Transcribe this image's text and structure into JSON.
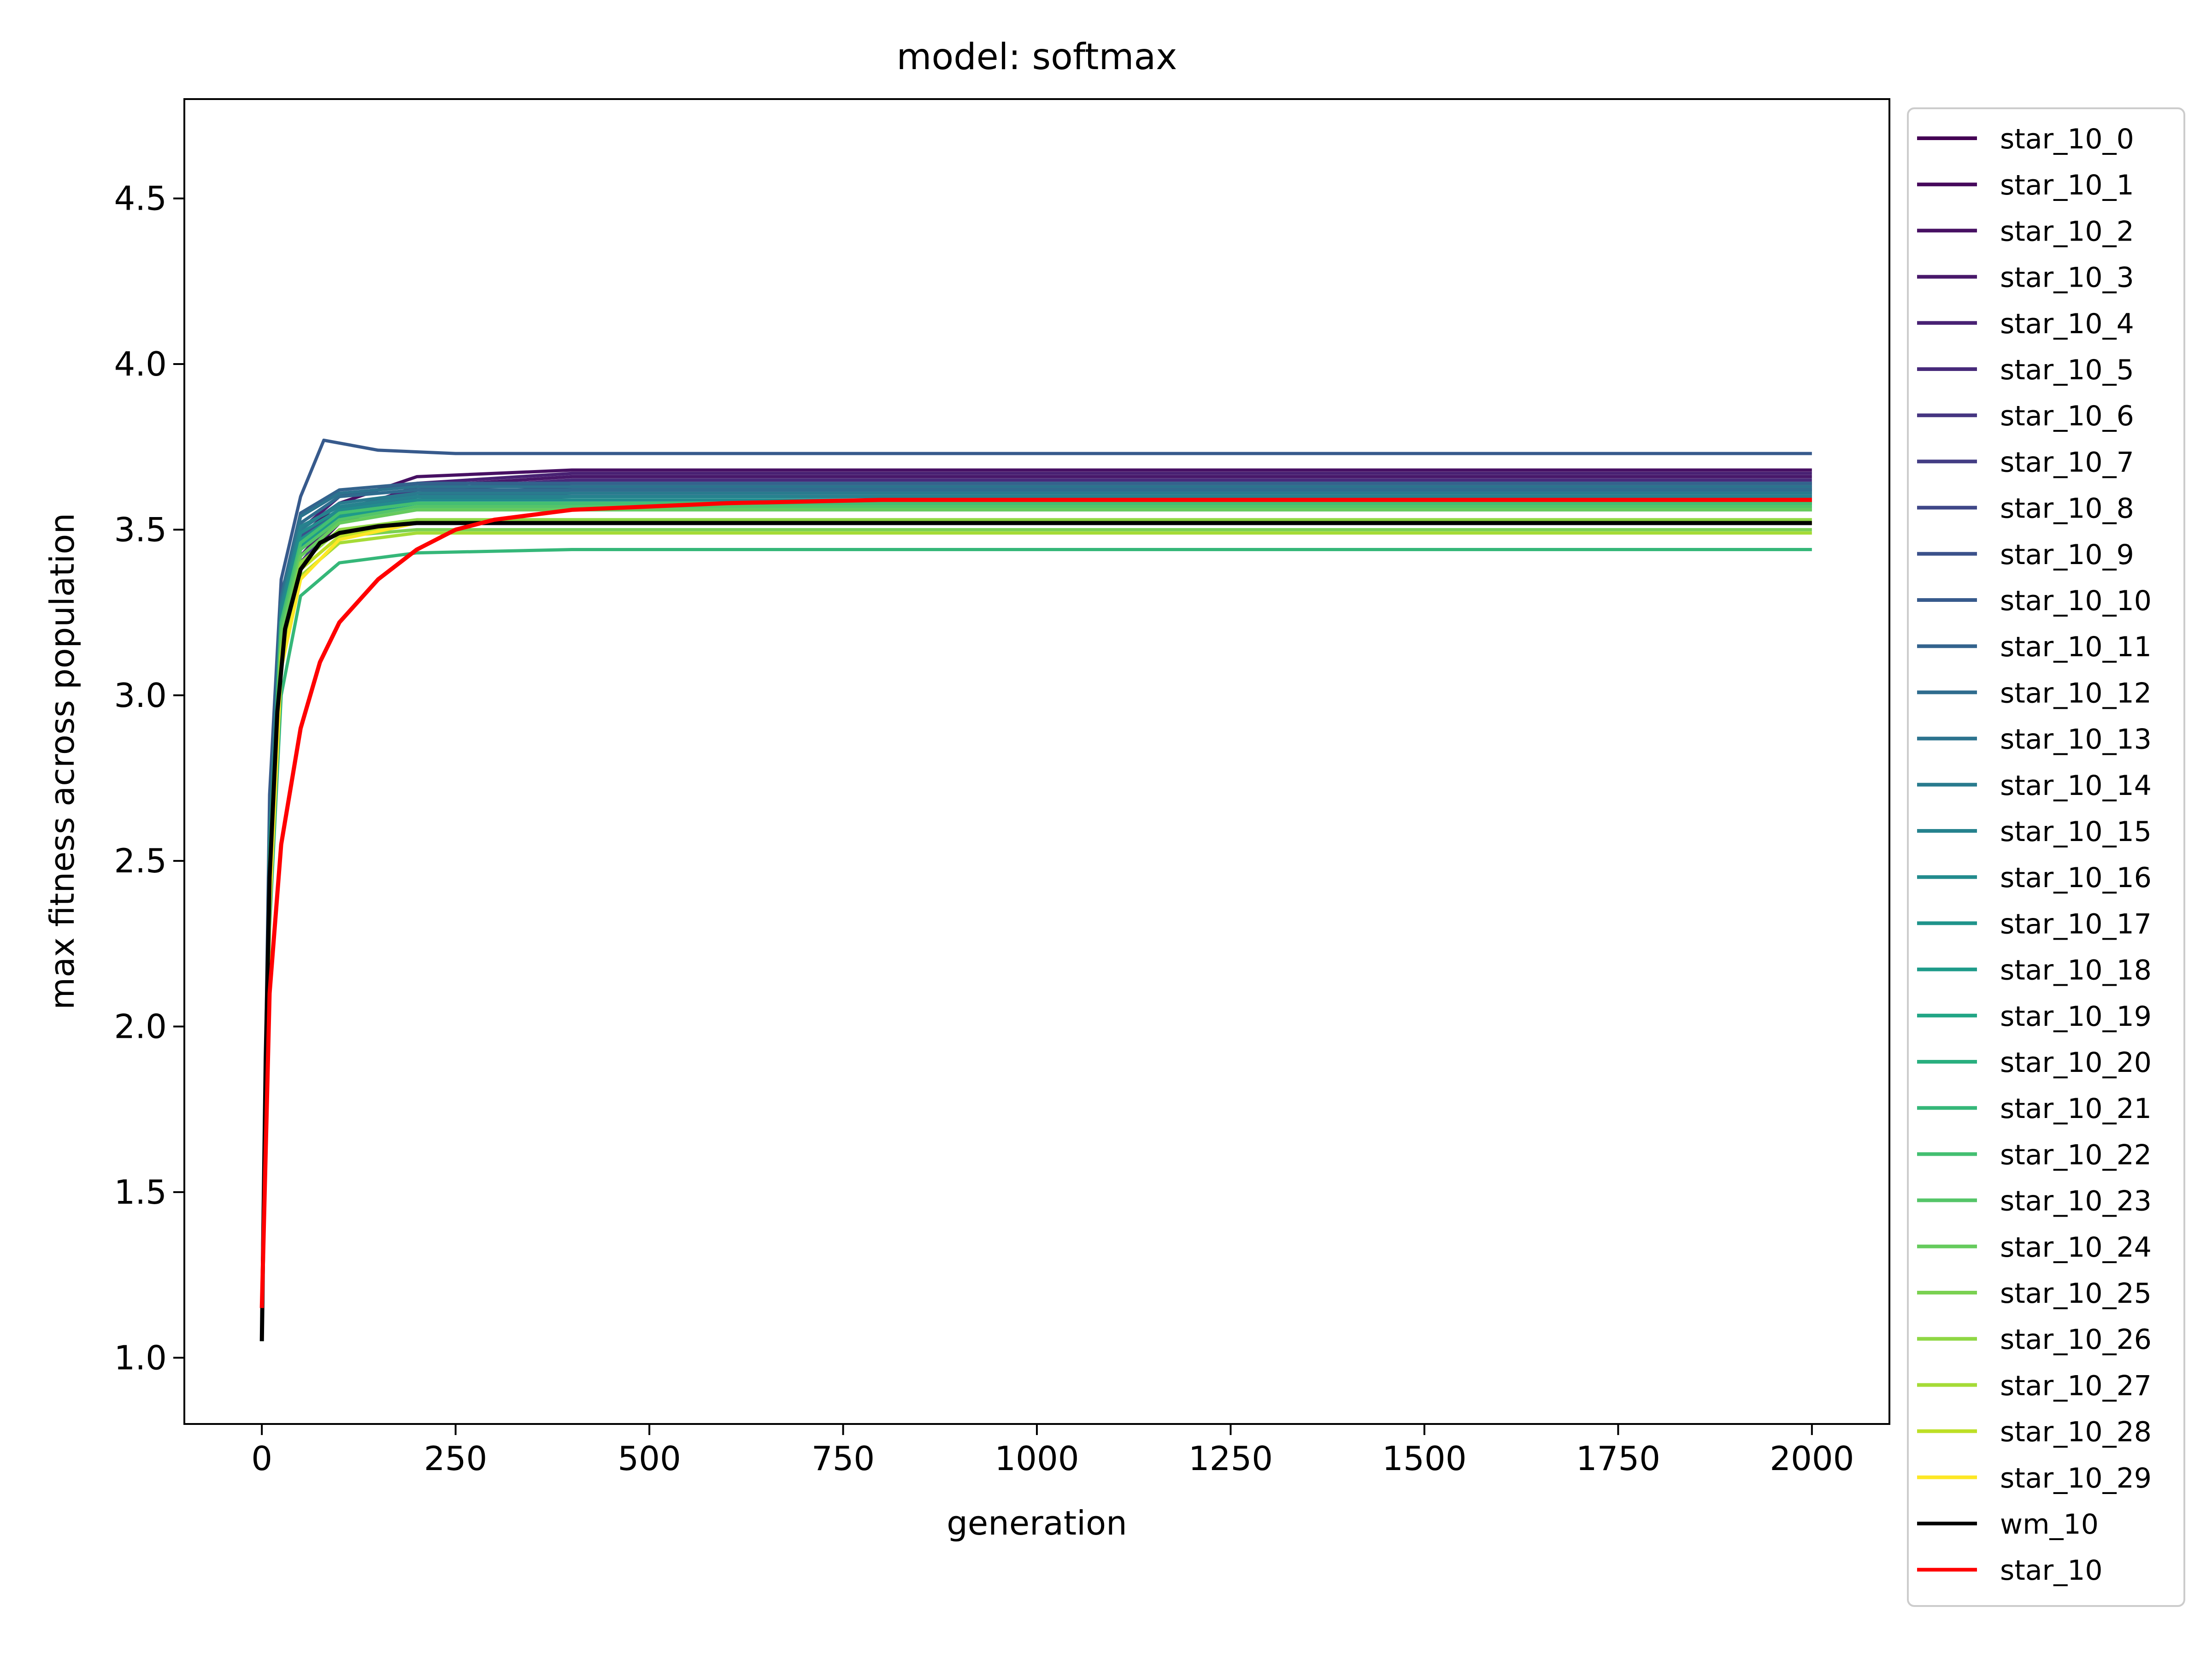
{
  "chart_data": {
    "type": "line",
    "title": "model: softmax",
    "xlabel": "generation",
    "ylabel": "max fitness across population",
    "xlim": [
      -100,
      2100
    ],
    "ylim": [
      0.8,
      4.8
    ],
    "x_ticks": [
      0,
      250,
      500,
      750,
      1000,
      1250,
      1500,
      1750,
      2000
    ],
    "x_tick_labels": [
      "0",
      "250",
      "500",
      "750",
      "1000",
      "1250",
      "1500",
      "1750",
      "2000"
    ],
    "y_ticks": [
      1.0,
      1.5,
      2.0,
      2.5,
      3.0,
      3.5,
      4.0,
      4.5
    ],
    "y_tick_labels": [
      "1.0",
      "1.5",
      "2.0",
      "2.5",
      "3.0",
      "3.5",
      "4.0",
      "4.5"
    ],
    "grid": false,
    "legend_position": "outside-right",
    "series": [
      {
        "name": "star_10_0",
        "color": "#440154",
        "values": [
          [
            0,
            1.1
          ],
          [
            10,
            2.5
          ],
          [
            25,
            3.2
          ],
          [
            50,
            3.45
          ],
          [
            100,
            3.55
          ],
          [
            200,
            3.62
          ],
          [
            400,
            3.64
          ],
          [
            2000,
            3.64
          ]
        ]
      },
      {
        "name": "star_10_1",
        "color": "#46085c",
        "values": [
          [
            0,
            1.05
          ],
          [
            10,
            2.4
          ],
          [
            25,
            3.15
          ],
          [
            50,
            3.4
          ],
          [
            100,
            3.52
          ],
          [
            200,
            3.6
          ],
          [
            400,
            3.63
          ],
          [
            2000,
            3.63
          ]
        ]
      },
      {
        "name": "star_10_2",
        "color": "#471063",
        "values": [
          [
            0,
            1.12
          ],
          [
            10,
            2.55
          ],
          [
            25,
            3.25
          ],
          [
            50,
            3.48
          ],
          [
            100,
            3.58
          ],
          [
            200,
            3.66
          ],
          [
            400,
            3.68
          ],
          [
            2000,
            3.68
          ]
        ]
      },
      {
        "name": "star_10_3",
        "color": "#48186a",
        "values": [
          [
            0,
            1.08
          ],
          [
            10,
            2.45
          ],
          [
            25,
            3.18
          ],
          [
            50,
            3.42
          ],
          [
            100,
            3.55
          ],
          [
            200,
            3.63
          ],
          [
            400,
            3.66
          ],
          [
            2000,
            3.66
          ]
        ]
      },
      {
        "name": "star_10_4",
        "color": "#482173",
        "values": [
          [
            0,
            1.15
          ],
          [
            10,
            2.6
          ],
          [
            25,
            3.28
          ],
          [
            50,
            3.5
          ],
          [
            100,
            3.6
          ],
          [
            200,
            3.64
          ],
          [
            400,
            3.67
          ],
          [
            2000,
            3.67
          ]
        ]
      },
      {
        "name": "star_10_5",
        "color": "#472a7a",
        "values": [
          [
            0,
            1.1
          ],
          [
            10,
            2.5
          ],
          [
            25,
            3.2
          ],
          [
            50,
            3.45
          ],
          [
            100,
            3.56
          ],
          [
            200,
            3.62
          ],
          [
            400,
            3.65
          ],
          [
            2000,
            3.65
          ]
        ]
      },
      {
        "name": "star_10_6",
        "color": "#453581",
        "values": [
          [
            0,
            1.05
          ],
          [
            10,
            2.42
          ],
          [
            25,
            3.16
          ],
          [
            50,
            3.4
          ],
          [
            100,
            3.54
          ],
          [
            200,
            3.6
          ],
          [
            400,
            3.62
          ],
          [
            2000,
            3.62
          ]
        ]
      },
      {
        "name": "star_10_7",
        "color": "#433d84",
        "values": [
          [
            0,
            1.12
          ],
          [
            10,
            2.52
          ],
          [
            25,
            3.22
          ],
          [
            50,
            3.46
          ],
          [
            100,
            3.55
          ],
          [
            200,
            3.6
          ],
          [
            400,
            3.61
          ],
          [
            2000,
            3.61
          ]
        ]
      },
      {
        "name": "star_10_8",
        "color": "#3f4788",
        "values": [
          [
            0,
            1.08
          ],
          [
            10,
            2.48
          ],
          [
            25,
            3.19
          ],
          [
            50,
            3.44
          ],
          [
            100,
            3.53
          ],
          [
            200,
            3.59
          ],
          [
            400,
            3.6
          ],
          [
            2000,
            3.6
          ]
        ]
      },
      {
        "name": "star_10_9",
        "color": "#3b518b",
        "values": [
          [
            0,
            1.1
          ],
          [
            10,
            2.5
          ],
          [
            25,
            3.22
          ],
          [
            50,
            3.48
          ],
          [
            100,
            3.56
          ],
          [
            200,
            3.61
          ],
          [
            400,
            3.62
          ],
          [
            2000,
            3.62
          ]
        ]
      },
      {
        "name": "star_10_10",
        "color": "#375a8c",
        "values": [
          [
            0,
            1.15
          ],
          [
            10,
            2.7
          ],
          [
            25,
            3.35
          ],
          [
            50,
            3.6
          ],
          [
            80,
            3.77
          ],
          [
            150,
            3.74
          ],
          [
            250,
            3.73
          ],
          [
            2000,
            3.73
          ]
        ]
      },
      {
        "name": "star_10_11",
        "color": "#33638d",
        "values": [
          [
            0,
            1.1
          ],
          [
            10,
            2.6
          ],
          [
            25,
            3.3
          ],
          [
            50,
            3.55
          ],
          [
            100,
            3.62
          ],
          [
            200,
            3.64
          ],
          [
            2000,
            3.64
          ]
        ]
      },
      {
        "name": "star_10_12",
        "color": "#2f6c8e",
        "values": [
          [
            0,
            1.08
          ],
          [
            10,
            2.55
          ],
          [
            25,
            3.28
          ],
          [
            50,
            3.52
          ],
          [
            100,
            3.6
          ],
          [
            200,
            3.62
          ],
          [
            2000,
            3.62
          ]
        ]
      },
      {
        "name": "star_10_13",
        "color": "#2c738e",
        "values": [
          [
            0,
            1.12
          ],
          [
            10,
            2.58
          ],
          [
            25,
            3.29
          ],
          [
            50,
            3.54
          ],
          [
            100,
            3.61
          ],
          [
            200,
            3.63
          ],
          [
            2000,
            3.63
          ]
        ]
      },
      {
        "name": "star_10_14",
        "color": "#297b8e",
        "values": [
          [
            0,
            1.06
          ],
          [
            10,
            2.52
          ],
          [
            25,
            3.26
          ],
          [
            50,
            3.5
          ],
          [
            100,
            3.58
          ],
          [
            200,
            3.61
          ],
          [
            2000,
            3.61
          ]
        ]
      },
      {
        "name": "star_10_15",
        "color": "#26828e",
        "values": [
          [
            0,
            1.1
          ],
          [
            10,
            2.55
          ],
          [
            25,
            3.27
          ],
          [
            50,
            3.51
          ],
          [
            100,
            3.57
          ],
          [
            200,
            3.6
          ],
          [
            2000,
            3.6
          ]
        ]
      },
      {
        "name": "star_10_16",
        "color": "#228b8d",
        "values": [
          [
            0,
            1.08
          ],
          [
            10,
            2.53
          ],
          [
            25,
            3.25
          ],
          [
            50,
            3.49
          ],
          [
            100,
            3.56
          ],
          [
            200,
            3.59
          ],
          [
            2000,
            3.59
          ]
        ]
      },
      {
        "name": "star_10_17",
        "color": "#1f938b",
        "values": [
          [
            0,
            1.12
          ],
          [
            10,
            2.5
          ],
          [
            25,
            3.23
          ],
          [
            50,
            3.47
          ],
          [
            100,
            3.55
          ],
          [
            200,
            3.58
          ],
          [
            2000,
            3.58
          ]
        ]
      },
      {
        "name": "star_10_18",
        "color": "#1e9b8a",
        "values": [
          [
            0,
            1.05
          ],
          [
            10,
            2.48
          ],
          [
            25,
            3.21
          ],
          [
            50,
            3.45
          ],
          [
            100,
            3.54
          ],
          [
            200,
            3.57
          ],
          [
            2000,
            3.57
          ]
        ]
      },
      {
        "name": "star_10_19",
        "color": "#21a585",
        "values": [
          [
            0,
            1.1
          ],
          [
            10,
            2.5
          ],
          [
            25,
            3.22
          ],
          [
            50,
            3.46
          ],
          [
            100,
            3.55
          ],
          [
            200,
            3.58
          ],
          [
            2000,
            3.58
          ]
        ]
      },
      {
        "name": "star_10_20",
        "color": "#29af7f",
        "values": [
          [
            0,
            1.08
          ],
          [
            10,
            2.45
          ],
          [
            25,
            3.18
          ],
          [
            50,
            3.42
          ],
          [
            100,
            3.52
          ],
          [
            200,
            3.56
          ],
          [
            2000,
            3.56
          ]
        ]
      },
      {
        "name": "star_10_21",
        "color": "#35b779",
        "values": [
          [
            0,
            1.1
          ],
          [
            10,
            2.3
          ],
          [
            25,
            3.0
          ],
          [
            50,
            3.3
          ],
          [
            100,
            3.4
          ],
          [
            200,
            3.43
          ],
          [
            400,
            3.44
          ],
          [
            2000,
            3.44
          ]
        ]
      },
      {
        "name": "star_10_22",
        "color": "#43bf71",
        "values": [
          [
            0,
            1.12
          ],
          [
            10,
            2.5
          ],
          [
            25,
            3.22
          ],
          [
            50,
            3.46
          ],
          [
            100,
            3.55
          ],
          [
            200,
            3.58
          ],
          [
            2000,
            3.58
          ]
        ]
      },
      {
        "name": "star_10_23",
        "color": "#54c568",
        "values": [
          [
            0,
            1.08
          ],
          [
            10,
            2.48
          ],
          [
            25,
            3.2
          ],
          [
            50,
            3.44
          ],
          [
            100,
            3.53
          ],
          [
            200,
            3.57
          ],
          [
            2000,
            3.57
          ]
        ]
      },
      {
        "name": "star_10_24",
        "color": "#66cb5d",
        "values": [
          [
            0,
            1.1
          ],
          [
            10,
            2.45
          ],
          [
            25,
            3.18
          ],
          [
            50,
            3.42
          ],
          [
            100,
            3.52
          ],
          [
            200,
            3.56
          ],
          [
            2000,
            3.56
          ]
        ]
      },
      {
        "name": "star_10_25",
        "color": "#7ad151",
        "values": [
          [
            0,
            1.05
          ],
          [
            10,
            2.4
          ],
          [
            25,
            3.12
          ],
          [
            50,
            3.38
          ],
          [
            100,
            3.48
          ],
          [
            200,
            3.5
          ],
          [
            2000,
            3.5
          ]
        ]
      },
      {
        "name": "star_10_26",
        "color": "#8fd744",
        "values": [
          [
            0,
            1.1
          ],
          [
            10,
            2.42
          ],
          [
            25,
            3.14
          ],
          [
            50,
            3.4
          ],
          [
            100,
            3.5
          ],
          [
            200,
            3.53
          ],
          [
            2000,
            3.53
          ]
        ]
      },
      {
        "name": "star_10_27",
        "color": "#a5db36",
        "values": [
          [
            0,
            1.12
          ],
          [
            10,
            2.38
          ],
          [
            25,
            3.1
          ],
          [
            50,
            3.36
          ],
          [
            100,
            3.46
          ],
          [
            200,
            3.49
          ],
          [
            2000,
            3.49
          ]
        ]
      },
      {
        "name": "star_10_28",
        "color": "#bddf26",
        "values": [
          [
            0,
            1.08
          ],
          [
            10,
            2.4
          ],
          [
            25,
            3.12
          ],
          [
            50,
            3.38
          ],
          [
            100,
            3.48
          ],
          [
            200,
            3.52
          ],
          [
            2000,
            3.52
          ]
        ]
      },
      {
        "name": "star_10_29",
        "color": "#fde725",
        "values": [
          [
            0,
            1.1
          ],
          [
            10,
            2.35
          ],
          [
            25,
            3.08
          ],
          [
            50,
            3.35
          ],
          [
            100,
            3.47
          ],
          [
            200,
            3.52
          ],
          [
            2000,
            3.52
          ]
        ]
      },
      {
        "name": "wm_10",
        "color": "#000000",
        "values": [
          [
            0,
            1.05
          ],
          [
            5,
            1.9
          ],
          [
            10,
            2.45
          ],
          [
            20,
            2.95
          ],
          [
            30,
            3.2
          ],
          [
            50,
            3.38
          ],
          [
            75,
            3.46
          ],
          [
            100,
            3.49
          ],
          [
            150,
            3.51
          ],
          [
            200,
            3.52
          ],
          [
            2000,
            3.52
          ]
        ]
      },
      {
        "name": "star_10",
        "color": "#ff0000",
        "values": [
          [
            0,
            1.15
          ],
          [
            10,
            2.1
          ],
          [
            25,
            2.55
          ],
          [
            50,
            2.9
          ],
          [
            75,
            3.1
          ],
          [
            100,
            3.22
          ],
          [
            150,
            3.35
          ],
          [
            200,
            3.44
          ],
          [
            250,
            3.5
          ],
          [
            300,
            3.53
          ],
          [
            400,
            3.56
          ],
          [
            500,
            3.57
          ],
          [
            600,
            3.58
          ],
          [
            800,
            3.59
          ],
          [
            1000,
            3.59
          ],
          [
            2000,
            3.59
          ]
        ]
      }
    ]
  }
}
